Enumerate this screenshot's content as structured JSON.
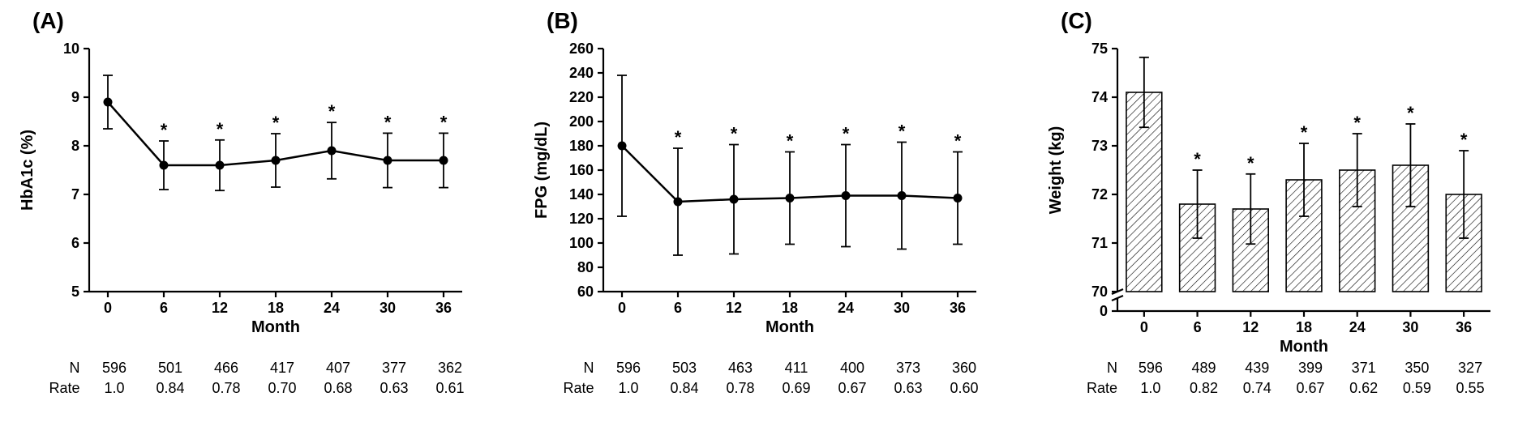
{
  "figure": {
    "background_color": "#ffffff",
    "axis_color": "#000000",
    "axis_line_width": 2.2,
    "data_line_width": 2.5,
    "marker_radius": 5.5,
    "error_cap_halfwidth": 6,
    "font_family": "Arial",
    "tick_fontsize": 18,
    "axis_label_fontsize": 20,
    "panel_label_fontsize": 28,
    "asterisk_glyph": "*"
  },
  "panels": [
    {
      "id": "A",
      "label": "(A)",
      "type": "line_errorbar",
      "xlabel": "Month",
      "ylabel": "HbA1c (%)",
      "x_values": [
        0,
        6,
        12,
        18,
        24,
        30,
        36
      ],
      "y_values": [
        8.9,
        7.6,
        7.6,
        7.7,
        7.9,
        7.7,
        7.7
      ],
      "y_err": [
        0.55,
        0.5,
        0.52,
        0.55,
        0.58,
        0.56,
        0.56
      ],
      "sig": [
        false,
        true,
        true,
        true,
        true,
        true,
        true
      ],
      "xlim": [
        -2,
        38
      ],
      "ylim": [
        5,
        10
      ],
      "xticks": [
        0,
        6,
        12,
        18,
        24,
        30,
        36
      ],
      "yticks": [
        5,
        6,
        7,
        8,
        9,
        10
      ],
      "ytick_labels": [
        "5",
        "6",
        "7",
        "8",
        "9",
        "10"
      ],
      "y_break": false,
      "below_rows": [
        {
          "label": "N",
          "values": [
            "596",
            "501",
            "466",
            "417",
            "407",
            "377",
            "362"
          ]
        },
        {
          "label": "Rate",
          "values": [
            "1.0",
            "0.84",
            "0.78",
            "0.70",
            "0.68",
            "0.63",
            "0.61"
          ]
        }
      ]
    },
    {
      "id": "B",
      "label": "(B)",
      "type": "line_errorbar",
      "xlabel": "Month",
      "ylabel": "FPG (mg/dL)",
      "x_values": [
        0,
        6,
        12,
        18,
        24,
        30,
        36
      ],
      "y_values": [
        180,
        134,
        136,
        137,
        139,
        139,
        137
      ],
      "y_err": [
        58,
        44,
        45,
        38,
        42,
        44,
        38
      ],
      "sig": [
        false,
        true,
        true,
        true,
        true,
        true,
        true
      ],
      "xlim": [
        -2,
        38
      ],
      "ylim": [
        60,
        260
      ],
      "xticks": [
        0,
        6,
        12,
        18,
        24,
        30,
        36
      ],
      "yticks": [
        60,
        80,
        100,
        120,
        140,
        160,
        180,
        200,
        220,
        240,
        260
      ],
      "ytick_labels": [
        "60",
        "80",
        "100",
        "120",
        "140",
        "160",
        "180",
        "200",
        "220",
        "240",
        "260"
      ],
      "y_break": false,
      "below_rows": [
        {
          "label": "N",
          "values": [
            "596",
            "503",
            "463",
            "411",
            "400",
            "373",
            "360"
          ]
        },
        {
          "label": "Rate",
          "values": [
            "1.0",
            "0.84",
            "0.78",
            "0.69",
            "0.67",
            "0.63",
            "0.60"
          ]
        }
      ]
    },
    {
      "id": "C",
      "label": "(C)",
      "type": "bar_hatched_errorbar",
      "xlabel": "Month",
      "ylabel": "Weight (kg)",
      "x_values": [
        0,
        6,
        12,
        18,
        24,
        30,
        36
      ],
      "y_values": [
        74.1,
        71.8,
        71.7,
        72.3,
        72.5,
        72.6,
        72.0
      ],
      "y_err": [
        0.72,
        0.7,
        0.72,
        0.75,
        0.75,
        0.85,
        0.9
      ],
      "sig": [
        false,
        true,
        true,
        true,
        true,
        true,
        true
      ],
      "xlim": [
        -3,
        39
      ],
      "ylim": [
        70,
        75
      ],
      "xticks": [
        0,
        6,
        12,
        18,
        24,
        30,
        36
      ],
      "yticks": [
        70,
        71,
        72,
        73,
        74,
        75
      ],
      "ytick_labels": [
        "70",
        "71",
        "72",
        "73",
        "74",
        "75"
      ],
      "y_break": true,
      "y_break_zero_label": "0",
      "bar_width": 4.0,
      "bar_fill": "#ffffff",
      "bar_edge": "#000000",
      "bar_edge_width": 1.6,
      "hatch_color": "#000000",
      "hatch_spacing": 7,
      "hatch_width": 1.2,
      "below_rows": [
        {
          "label": "N",
          "values": [
            "596",
            "489",
            "439",
            "399",
            "371",
            "350",
            "327"
          ]
        },
        {
          "label": "Rate",
          "values": [
            "1.0",
            "0.82",
            "0.74",
            "0.67",
            "0.62",
            "0.59",
            "0.55"
          ]
        }
      ]
    }
  ]
}
